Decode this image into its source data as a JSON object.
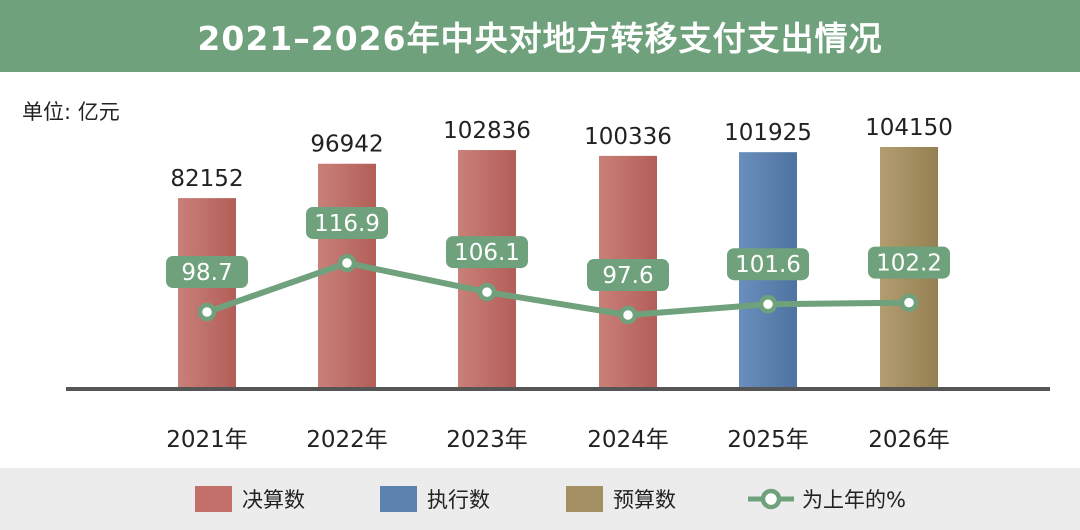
{
  "header": {
    "title": "2021–2026年中央对地方转移支付支出情况",
    "unit_label": "单位: 亿元"
  },
  "colors": {
    "header_bg": "#6fa17c",
    "final": "#c3706a",
    "execution": "#5d82b0",
    "budget": "#a48f62",
    "line": "#6fa17c",
    "axis": "#555555",
    "legend_bg": "#ececec"
  },
  "chart_data": {
    "type": "bar",
    "title": "2021–2026年中央对地方转移支付支出情况",
    "ylabel": "亿元",
    "categories": [
      "2021年",
      "2022年",
      "2023年",
      "2024年",
      "2025年",
      "2026年"
    ],
    "series": [
      {
        "name": "决算数",
        "type": "bar",
        "values": [
          82152,
          96942,
          102836,
          100336,
          null,
          null
        ],
        "value_labels": [
          "82152",
          "96942",
          "102836",
          "100336",
          "",
          ""
        ]
      },
      {
        "name": "执行数",
        "type": "bar",
        "values": [
          null,
          null,
          null,
          null,
          101925,
          null
        ],
        "value_labels": [
          "",
          "",
          "",
          "",
          "101925",
          ""
        ]
      },
      {
        "name": "预算数",
        "type": "bar",
        "values": [
          null,
          null,
          null,
          null,
          null,
          104150
        ],
        "value_labels": [
          "",
          "",
          "",
          "",
          "",
          "104150"
        ]
      },
      {
        "name": "为上年的%",
        "type": "line",
        "values": [
          98.7,
          116.9,
          106.1,
          97.6,
          101.6,
          102.2
        ],
        "value_labels": [
          "98.7",
          "116.9",
          "106.1",
          "97.6",
          "101.6",
          "102.2"
        ]
      }
    ],
    "bar_ylim": [
      0,
      104150
    ],
    "line_ylim": [
      97.6,
      116.9
    ],
    "grid": false,
    "legend_position": "bottom"
  },
  "legend": {
    "items": [
      {
        "label": "决算数",
        "kind": "bar",
        "color": "#c3706a"
      },
      {
        "label": "执行数",
        "kind": "bar",
        "color": "#5d82b0"
      },
      {
        "label": "预算数",
        "kind": "bar",
        "color": "#a48f62"
      },
      {
        "label": "为上年的%",
        "kind": "line",
        "color": "#6fa17c"
      }
    ]
  }
}
